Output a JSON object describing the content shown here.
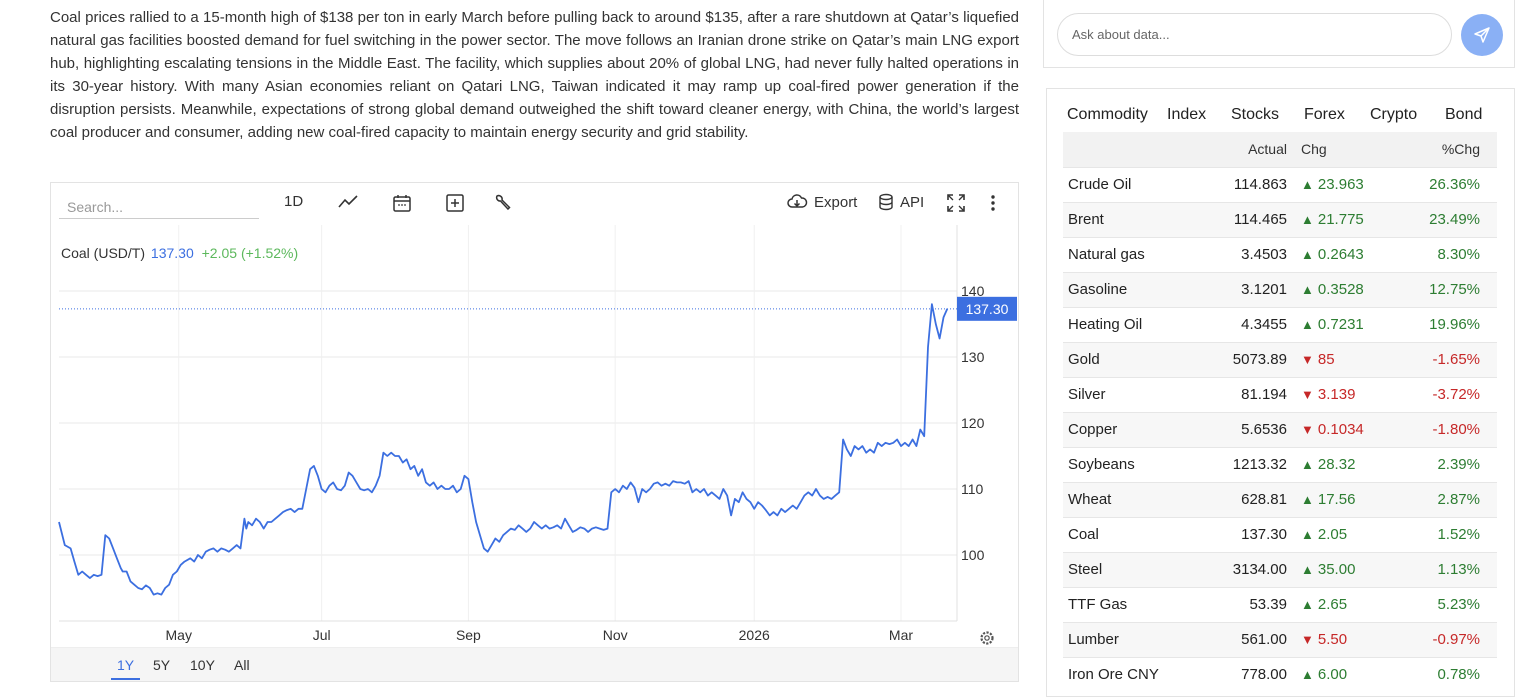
{
  "article": {
    "text": "Coal prices rallied to a 15-month high of $138 per ton in early March before pulling back to around $135, after a rare shutdown at Qatar’s liquefied natural gas facilities boosted demand for fuel switching in the power sector. The move follows an Iranian drone strike on Qatar’s main LNG export hub, highlighting escalating tensions in the Middle East. The facility, which supplies about 20% of global LNG, had never fully halted operations in its 30-year history. With many Asian economies reliant on Qatari LNG, Taiwan indicated it may ramp up coal-fired power generation if the disruption persists. Meanwhile, expectations of strong global demand outweighed the shift toward cleaner energy, with China, the world’s largest coal producer and consumer, adding new coal-fired capacity to maintain energy security and grid stability."
  },
  "chart_toolbar": {
    "search_placeholder": "Search...",
    "interval": "1D",
    "export_label": "Export",
    "api_label": "API"
  },
  "legend": {
    "name": "Coal (USD/T)",
    "value": "137.30",
    "change": "+2.05 (+1.52%)"
  },
  "range_buttons": [
    "1Y",
    "5Y",
    "10Y",
    "All"
  ],
  "active_range": "1Y",
  "colors": {
    "line": "#3c6fe0",
    "up": "#2d7d32",
    "down": "#c62828",
    "send_button": "#8ab0f5"
  },
  "chart_data": {
    "type": "line",
    "series": [
      {
        "name": "Coal (USD/T)",
        "color": "#3c6fe0"
      }
    ],
    "x_ticks": [
      "May",
      "Jul",
      "Sep",
      "Nov",
      "2026",
      "Mar"
    ],
    "y_ticks": [
      100,
      110,
      120,
      130,
      140
    ],
    "ylim": [
      90,
      150
    ],
    "last_value_label": "137.30",
    "points": [
      [
        0,
        105
      ],
      [
        3,
        101.5
      ],
      [
        6,
        101
      ],
      [
        8,
        99
      ],
      [
        10,
        97
      ],
      [
        12,
        97.5
      ],
      [
        14,
        97
      ],
      [
        16,
        96.5
      ],
      [
        18,
        97
      ],
      [
        20,
        96.8
      ],
      [
        22,
        97
      ],
      [
        24,
        103
      ],
      [
        26,
        102.5
      ],
      [
        28,
        101
      ],
      [
        30,
        99.5
      ],
      [
        32,
        98
      ],
      [
        33,
        97.5
      ],
      [
        35,
        97.5
      ],
      [
        37,
        96
      ],
      [
        39,
        95.5
      ],
      [
        41,
        95
      ],
      [
        43,
        94.8
      ],
      [
        45,
        95.4
      ],
      [
        47,
        95
      ],
      [
        49,
        94
      ],
      [
        51,
        94.2
      ],
      [
        53,
        94
      ],
      [
        55,
        95
      ],
      [
        57,
        95.5
      ],
      [
        59,
        97
      ],
      [
        61,
        97.5
      ],
      [
        63,
        98.5
      ],
      [
        65,
        99
      ],
      [
        68,
        99.5
      ],
      [
        70,
        99
      ],
      [
        72,
        100
      ],
      [
        74,
        99.5
      ],
      [
        76,
        100.5
      ],
      [
        78,
        100.8
      ],
      [
        80,
        101
      ],
      [
        82,
        100.5
      ],
      [
        84,
        101
      ],
      [
        86,
        100.8
      ],
      [
        88,
        100.5
      ],
      [
        90,
        101
      ],
      [
        92,
        101.5
      ],
      [
        94,
        101
      ],
      [
        96,
        105.5
      ],
      [
        97,
        104
      ],
      [
        98,
        105
      ],
      [
        100,
        104.5
      ],
      [
        102,
        105.5
      ],
      [
        104,
        105
      ],
      [
        106,
        104
      ],
      [
        108,
        105
      ],
      [
        110,
        105
      ],
      [
        112,
        105.5
      ],
      [
        114,
        106
      ],
      [
        116,
        106.5
      ],
      [
        118,
        106.8
      ],
      [
        120,
        107
      ],
      [
        122,
        106.5
      ],
      [
        124,
        107
      ],
      [
        126,
        107
      ],
      [
        128,
        110
      ],
      [
        130,
        113
      ],
      [
        132,
        113.5
      ],
      [
        134,
        112
      ],
      [
        136,
        110
      ],
      [
        138,
        109.5
      ],
      [
        140,
        110.5
      ],
      [
        142,
        111
      ],
      [
        144,
        110
      ],
      [
        146,
        109.8
      ],
      [
        148,
        110.5
      ],
      [
        150,
        112.5
      ],
      [
        152,
        112
      ],
      [
        154,
        111
      ],
      [
        156,
        110
      ],
      [
        158,
        109.8
      ],
      [
        160,
        110
      ],
      [
        162,
        109.5
      ],
      [
        164,
        110.5
      ],
      [
        166,
        112
      ],
      [
        168,
        115.5
      ],
      [
        170,
        115
      ],
      [
        172,
        115.5
      ],
      [
        174,
        115
      ],
      [
        176,
        115
      ],
      [
        178,
        114
      ],
      [
        180,
        114.5
      ],
      [
        182,
        113
      ],
      [
        184,
        113.5
      ],
      [
        186,
        112
      ],
      [
        188,
        113
      ],
      [
        190,
        111
      ],
      [
        192,
        110.5
      ],
      [
        194,
        111
      ],
      [
        196,
        110
      ],
      [
        198,
        110.5
      ],
      [
        200,
        110
      ],
      [
        202,
        110
      ],
      [
        204,
        110.5
      ],
      [
        206,
        109.5
      ],
      [
        208,
        110
      ],
      [
        210,
        112
      ],
      [
        212,
        111.5
      ],
      [
        214,
        108
      ],
      [
        216,
        105
      ],
      [
        218,
        103
      ],
      [
        220,
        101
      ],
      [
        222,
        100.5
      ],
      [
        224,
        101.5
      ],
      [
        226,
        102.5
      ],
      [
        228,
        102
      ],
      [
        230,
        103
      ],
      [
        232,
        103.5
      ],
      [
        234,
        104
      ],
      [
        236,
        103.8
      ],
      [
        238,
        104.5
      ],
      [
        240,
        104
      ],
      [
        242,
        103.5
      ],
      [
        244,
        104
      ],
      [
        246,
        105
      ],
      [
        248,
        104.5
      ],
      [
        250,
        104
      ],
      [
        252,
        104.5
      ],
      [
        254,
        104
      ],
      [
        256,
        104.2
      ],
      [
        258,
        104.5
      ],
      [
        260,
        104
      ],
      [
        262,
        105.5
      ],
      [
        264,
        104.5
      ],
      [
        266,
        103.5
      ],
      [
        268,
        103.8
      ],
      [
        270,
        104.2
      ],
      [
        272,
        104
      ],
      [
        274,
        103.5
      ],
      [
        276,
        104
      ],
      [
        278,
        104.2
      ],
      [
        280,
        104
      ],
      [
        282,
        103.8
      ],
      [
        284,
        104
      ],
      [
        286,
        109.5
      ],
      [
        288,
        110
      ],
      [
        290,
        109.5
      ],
      [
        292,
        110.5
      ],
      [
        294,
        110
      ],
      [
        296,
        111
      ],
      [
        298,
        110.2
      ],
      [
        300,
        108
      ],
      [
        302,
        110
      ],
      [
        304,
        109.5
      ],
      [
        306,
        110
      ],
      [
        308,
        110.8
      ],
      [
        310,
        111
      ],
      [
        312,
        110.5
      ],
      [
        314,
        110.8
      ],
      [
        316,
        110.5
      ],
      [
        318,
        111.2
      ],
      [
        320,
        111
      ],
      [
        322,
        111
      ],
      [
        324,
        110.8
      ],
      [
        326,
        111.2
      ],
      [
        328,
        109.5
      ],
      [
        330,
        110
      ],
      [
        332,
        109.5
      ],
      [
        334,
        110
      ],
      [
        336,
        109
      ],
      [
        338,
        109.5
      ],
      [
        340,
        109
      ],
      [
        342,
        108.5
      ],
      [
        344,
        110
      ],
      [
        346,
        109
      ],
      [
        348,
        106
      ],
      [
        350,
        108.5
      ],
      [
        352,
        108
      ],
      [
        354,
        109.5
      ],
      [
        356,
        108.5
      ],
      [
        358,
        108
      ],
      [
        360,
        107
      ],
      [
        362,
        108
      ],
      [
        364,
        107.5
      ],
      [
        366,
        106.8
      ],
      [
        368,
        106
      ],
      [
        370,
        106.5
      ],
      [
        372,
        106
      ],
      [
        374,
        107
      ],
      [
        376,
        106.5
      ],
      [
        378,
        107
      ],
      [
        380,
        107.5
      ],
      [
        382,
        107
      ],
      [
        384,
        108
      ],
      [
        386,
        109
      ],
      [
        388,
        109.5
      ],
      [
        390,
        109
      ],
      [
        392,
        110
      ],
      [
        394,
        109
      ],
      [
        396,
        108.5
      ],
      [
        398,
        108.8
      ],
      [
        400,
        108.5
      ],
      [
        402,
        109
      ],
      [
        404,
        109.5
      ],
      [
        406,
        117.5
      ],
      [
        408,
        116
      ],
      [
        410,
        115
      ],
      [
        412,
        116.5
      ],
      [
        414,
        116
      ],
      [
        416,
        116.5
      ],
      [
        418,
        115.5
      ],
      [
        420,
        116
      ],
      [
        422,
        115.5
      ],
      [
        424,
        117
      ],
      [
        426,
        116.5
      ],
      [
        428,
        117
      ],
      [
        430,
        116.8
      ],
      [
        432,
        117
      ],
      [
        434,
        117.5
      ],
      [
        436,
        116.5
      ],
      [
        438,
        117
      ],
      [
        440,
        116.5
      ],
      [
        442,
        117.5
      ],
      [
        444,
        116.5
      ],
      [
        446,
        119
      ],
      [
        448,
        118
      ],
      [
        450,
        131.5
      ],
      [
        452,
        138
      ],
      [
        454,
        135
      ],
      [
        456,
        132.8
      ],
      [
        458,
        136
      ],
      [
        460,
        137.3
      ]
    ],
    "x_tick_positions": [
      62,
      136,
      212,
      288,
      360,
      436
    ],
    "x_max": 465
  },
  "ask": {
    "placeholder": "Ask about data..."
  },
  "market_tabs": [
    "Commodity",
    "Index",
    "Stocks",
    "Forex",
    "Crypto",
    "Bond"
  ],
  "active_tab": "Commodity",
  "table": {
    "headers": [
      "",
      "Actual",
      "Chg",
      "%Chg"
    ],
    "rows": [
      {
        "name": "Crude Oil",
        "actual": "114.863",
        "dir": "up",
        "chg": "23.963",
        "pct": "26.36%"
      },
      {
        "name": "Brent",
        "actual": "114.465",
        "dir": "up",
        "chg": "21.775",
        "pct": "23.49%"
      },
      {
        "name": "Natural gas",
        "actual": "3.4503",
        "dir": "up",
        "chg": "0.2643",
        "pct": "8.30%"
      },
      {
        "name": "Gasoline",
        "actual": "3.1201",
        "dir": "up",
        "chg": "0.3528",
        "pct": "12.75%"
      },
      {
        "name": "Heating Oil",
        "actual": "4.3455",
        "dir": "up",
        "chg": "0.7231",
        "pct": "19.96%"
      },
      {
        "name": "Gold",
        "actual": "5073.89",
        "dir": "down",
        "chg": "85",
        "pct": "-1.65%"
      },
      {
        "name": "Silver",
        "actual": "81.194",
        "dir": "down",
        "chg": "3.139",
        "pct": "-3.72%"
      },
      {
        "name": "Copper",
        "actual": "5.6536",
        "dir": "down",
        "chg": "0.1034",
        "pct": "-1.80%"
      },
      {
        "name": "Soybeans",
        "actual": "1213.32",
        "dir": "up",
        "chg": "28.32",
        "pct": "2.39%"
      },
      {
        "name": "Wheat",
        "actual": "628.81",
        "dir": "up",
        "chg": "17.56",
        "pct": "2.87%"
      },
      {
        "name": "Coal",
        "actual": "137.30",
        "dir": "up",
        "chg": "2.05",
        "pct": "1.52%"
      },
      {
        "name": "Steel",
        "actual": "3134.00",
        "dir": "up",
        "chg": "35.00",
        "pct": "1.13%"
      },
      {
        "name": "TTF Gas",
        "actual": "53.39",
        "dir": "up",
        "chg": "2.65",
        "pct": "5.23%"
      },
      {
        "name": "Lumber",
        "actual": "561.00",
        "dir": "down",
        "chg": "5.50",
        "pct": "-0.97%"
      },
      {
        "name": "Iron Ore CNY",
        "actual": "778.00",
        "dir": "up",
        "chg": "6.00",
        "pct": "0.78%"
      }
    ]
  }
}
